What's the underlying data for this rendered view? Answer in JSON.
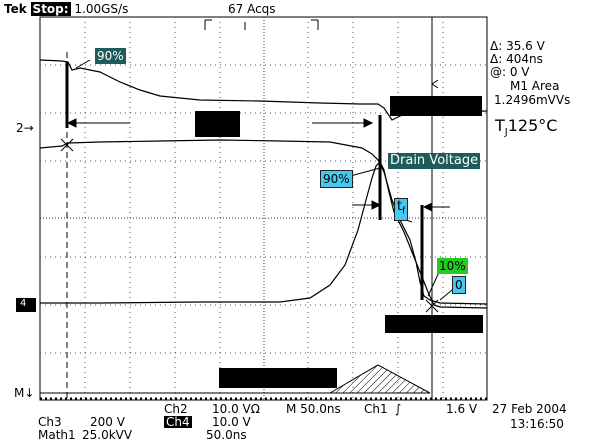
{
  "header": {
    "brand": "Tek",
    "run_state": "Stop:",
    "sample_rate": "1.00GS/s",
    "acquisitions": "67 Acqs"
  },
  "readouts": {
    "delta_voltage": "Δ: 35.6 V",
    "delta_time": "Δ: 404ns",
    "at_voltage": "@: 0 V",
    "measure_name": "M1 Area",
    "measure_value": "1.2496mVVs",
    "temp_main": "T",
    "temp_sub": "J",
    "temp_value": "125°C"
  },
  "annotations": {
    "pct90_top": "90%",
    "pct90_mid": "90%",
    "drain_voltage": "Drain Voltage",
    "tf_main": "t",
    "tf_sub": "f",
    "pct10": "10%",
    "zero": "0"
  },
  "markers": {
    "ch2_ref": "2→",
    "ch4_ref": "4",
    "math_ref": "M↓"
  },
  "bottom": {
    "ch3_label": "Ch3",
    "ch3_scale": "200 V",
    "math1_label": "Math1",
    "math1_scale": "25.0kVV",
    "ch2_label": "Ch2",
    "ch2_scale": "10.0 VΩ",
    "ch4_label": "Ch4",
    "ch4_scale": "10.0 V",
    "timebase": "M 50.0ns",
    "math_time": "50.0ns",
    "trigger_src": "Ch1",
    "trigger_slope": "∫",
    "trigger_level": "1.6 V",
    "date": "27 Feb 2004",
    "time": "13:16:50"
  },
  "colors": {
    "tag_teal": "#1f5b5b",
    "tag_blue": "#47c8f0",
    "tag_green": "#22cc22"
  }
}
